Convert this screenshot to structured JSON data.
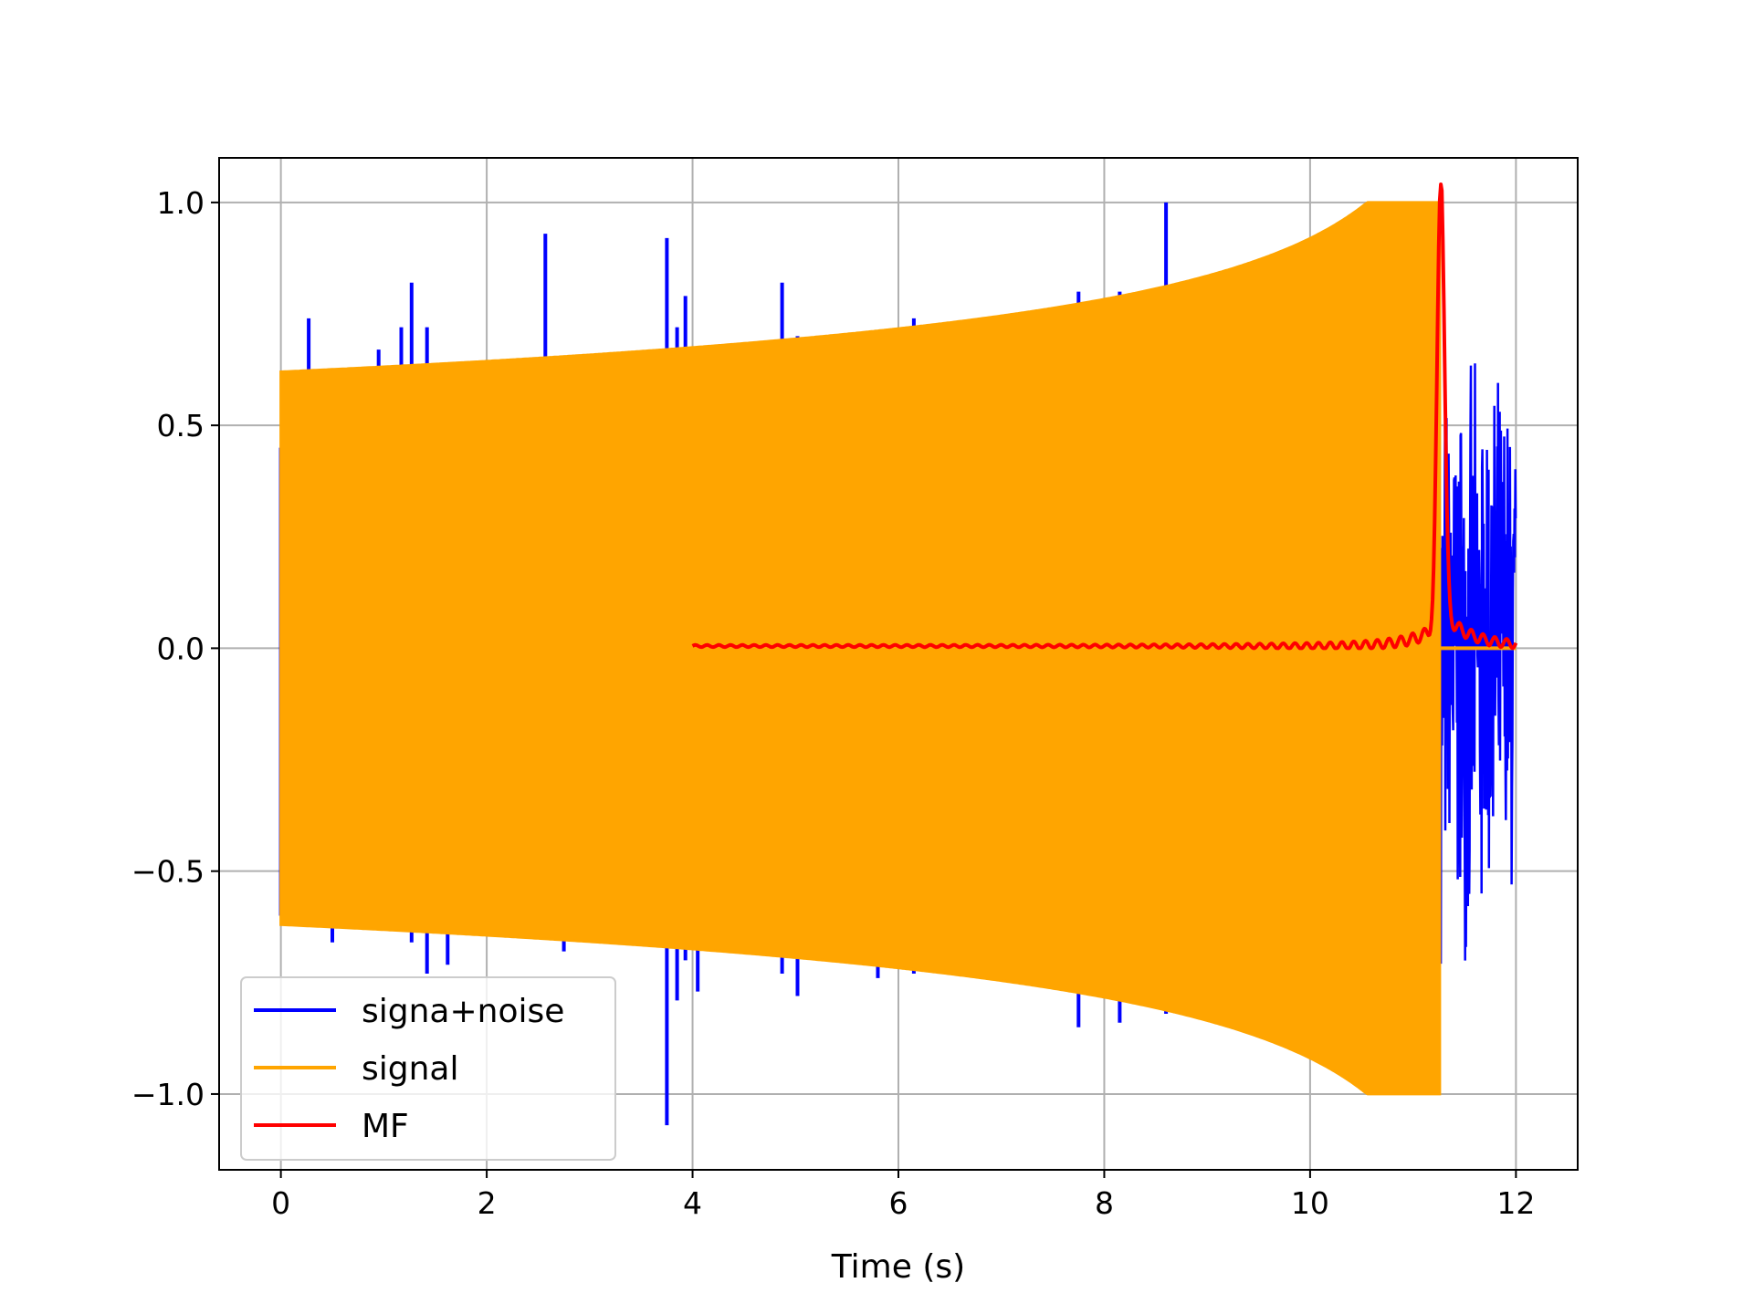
{
  "chart_data": {
    "type": "line",
    "title": "",
    "xlabel": "Time (s)",
    "ylabel": "",
    "xlim": [
      -0.6,
      12.6
    ],
    "ylim": [
      -1.17,
      1.1
    ],
    "xticks": [
      0,
      2,
      4,
      6,
      8,
      10,
      12
    ],
    "xtick_labels": [
      "0",
      "2",
      "4",
      "6",
      "8",
      "10",
      "12"
    ],
    "yticks": [
      -1.0,
      -0.5,
      0.0,
      0.5,
      1.0
    ],
    "ytick_labels": [
      "−1.0",
      "−0.5",
      "0.0",
      "0.5",
      "1.0"
    ],
    "grid": true,
    "legend_position": "lower left",
    "series": [
      {
        "name": "signa+noise",
        "color": "#0000ff",
        "spikes": [
          [
            0.0,
            0.45,
            -0.6
          ],
          [
            0.05,
            0.62,
            -0.62
          ],
          [
            0.27,
            0.74,
            -0.6
          ],
          [
            0.5,
            0.6,
            -0.66
          ],
          [
            0.95,
            0.67,
            -0.62
          ],
          [
            1.17,
            0.72,
            -0.6
          ],
          [
            1.27,
            0.82,
            -0.66
          ],
          [
            1.42,
            0.72,
            -0.73
          ],
          [
            1.62,
            0.62,
            -0.71
          ],
          [
            2.57,
            0.93,
            -0.65
          ],
          [
            2.75,
            0.6,
            -0.68
          ],
          [
            3.75,
            0.92,
            -1.07
          ],
          [
            3.85,
            0.72,
            -0.79
          ],
          [
            3.93,
            0.79,
            -0.7
          ],
          [
            4.05,
            0.66,
            -0.77
          ],
          [
            4.87,
            0.82,
            -0.73
          ],
          [
            5.02,
            0.7,
            -0.78
          ],
          [
            5.8,
            0.7,
            -0.74
          ],
          [
            6.15,
            0.74,
            -0.73
          ],
          [
            7.75,
            0.8,
            -0.85
          ],
          [
            8.15,
            0.8,
            -0.84
          ],
          [
            8.6,
            1.0,
            -0.82
          ]
        ],
        "noise_region": [
          11.27,
          12.0
        ],
        "noise_envelope": [
          0.66,
          -0.74
        ]
      },
      {
        "name": "signal",
        "color": "#ffa500",
        "x_range": [
          0.0,
          11.27
        ],
        "amplitude_start": 0.62,
        "amplitude_end": 1.0,
        "flat_after": [
          11.27,
          12.0
        ]
      },
      {
        "name": "MF",
        "color": "#ff0000",
        "x_range": [
          4.0,
          12.0
        ],
        "baseline": 0.005,
        "peak_x": 11.27,
        "peak_y": 1.0
      }
    ]
  }
}
